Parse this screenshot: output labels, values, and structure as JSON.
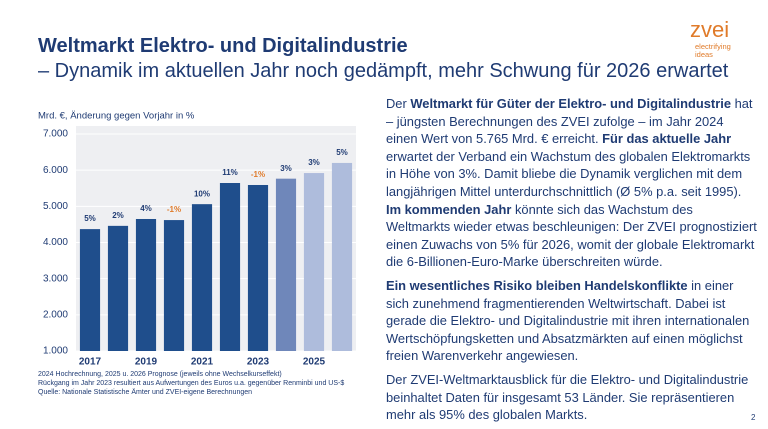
{
  "header": {
    "title": "Weltmarkt Elektro- und Digitalindustrie",
    "subtitle": "– Dynamik im aktuellen Jahr noch gedämpft, mehr Schwung für 2026 erwartet"
  },
  "logo": {
    "name": "zvei",
    "tagline": [
      "electrifying",
      "ideas"
    ]
  },
  "chart_data": {
    "type": "bar",
    "y_label": "Mrd. €, Änderung gegen Vorjahr in %",
    "categories": [
      "2017",
      null,
      "2019",
      null,
      "2021",
      null,
      "2023",
      null,
      "2025",
      null
    ],
    "values": [
      4370,
      4460,
      4650,
      4620,
      5060,
      5645,
      5590,
      5765,
      5920,
      6200
    ],
    "colors": [
      "#1f4e8c",
      "#1f4e8c",
      "#1f4e8c",
      "#1f4e8c",
      "#1f4e8c",
      "#1f4e8c",
      "#1f4e8c",
      "#6f87ba",
      "#aebcdc",
      "#aebcdc"
    ],
    "growth_labels": [
      "5%",
      "2%",
      "4%",
      "-1%",
      "10%",
      "11%",
      "-1%",
      "3%",
      "3%",
      "5%"
    ],
    "growth_label_colors": [
      "#1f3b73",
      "#1f3b73",
      "#1f3b73",
      "#e07b2a",
      "#1f3b73",
      "#1f3b73",
      "#e07b2a",
      "#1f3b73",
      "#1f3b73",
      "#1f3b73"
    ],
    "ylim": [
      1000,
      7000
    ],
    "yticks": [
      {
        "value": 1000,
        "label": "1.000"
      },
      {
        "value": 2000,
        "label": "2.000"
      },
      {
        "value": 3000,
        "label": "3.000"
      },
      {
        "value": 4000,
        "label": "4.000"
      },
      {
        "value": 5000,
        "label": "5.000"
      },
      {
        "value": 6000,
        "label": "6.000"
      },
      {
        "value": 7000,
        "label": "7.000"
      }
    ],
    "grid": true
  },
  "footnotes": [
    "2024 Hochrechnung, 2025 u. 2026 Prognose (jeweils ohne Wechselkurseffekt)",
    "Rückgang im Jahr 2023 resultiert aus Aufwertungen des Euros u.a. gegenüber Renminbi und US-$",
    "Quelle: Nationale Statistische Ämter und ZVEI-eigene Berechnungen"
  ],
  "paragraphs": [
    [
      {
        "text": "Der ",
        "bold": false
      },
      {
        "text": "Weltmarkt für Güter der Elektro- und Digitalindustrie",
        "bold": true
      },
      {
        "text": " hat – jüngsten Berechnungen des ZVEI zufolge – im Jahr 2024 einen Wert von 5.765 Mrd. € erreicht. ",
        "bold": false
      },
      {
        "text": "Für das aktuelle Jahr",
        "bold": true
      },
      {
        "text": " erwartet der Verband ein Wachstum des globalen Elektromarkts in Höhe von 3%. Damit bliebe die Dynamik verglichen mit dem langjährigen Mittel unterdurchschnittlich (Ø 5% p.a. seit 1995). ",
        "bold": false
      },
      {
        "text": "Im kommenden Jahr",
        "bold": true
      },
      {
        "text": " könnte sich das Wachstum des Weltmarkts wieder etwas beschleunigen: Der ZVEI prognostiziert einen Zuwachs von 5% für 2026, womit der globale Elektromarkt die 6-Billionen-Euro-Marke überschreiten würde.",
        "bold": false
      }
    ],
    [
      {
        "text": "Ein wesentliches Risiko bleiben Handelskonflikte",
        "bold": true
      },
      {
        "text": " in einer sich zunehmend fragmentierenden Weltwirtschaft. Dabei ist gerade die Elektro- und Digitalindustrie mit ihren internationalen Wertschöpfungsketten und Absatzmärkten auf einen möglichst freien Warenverkehr angewiesen.",
        "bold": false
      }
    ],
    [
      {
        "text": "Der ZVEI-Weltmarktausblick für die Elektro- und Digitalindustrie beinhaltet Daten für insgesamt 53 Länder. Sie repräsentieren mehr als 95% des globalen Markts.",
        "bold": false
      }
    ]
  ],
  "page_number": "2"
}
